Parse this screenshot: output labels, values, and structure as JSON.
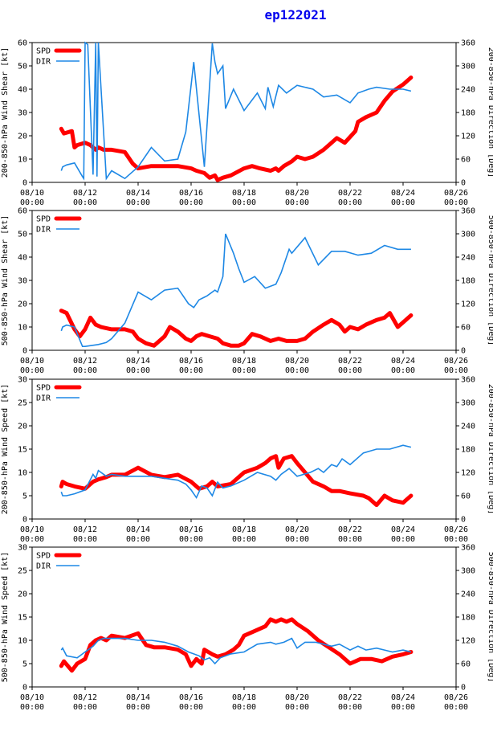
{
  "title": "ep122021",
  "colors": {
    "spd": "#ff0000",
    "dir": "#1e88e5",
    "title": "#0000ee"
  },
  "x_tick_labels": [
    "08/10",
    "08/12",
    "08/14",
    "08/16",
    "08/18",
    "08/20",
    "08/22",
    "08/24",
    "08/26"
  ],
  "x_tick_sublabel": "00:00",
  "chart_data": [
    {
      "type": "line",
      "xlim": [
        10,
        26
      ],
      "left_ylabel": "200-850-hPa Wind Shear [kt]",
      "right_ylabel": "200-850-hPa Direction [Deg]",
      "left_ylim": [
        0,
        60
      ],
      "right_ylim": [
        0,
        360
      ],
      "left_ticks": [
        0,
        10,
        20,
        30,
        40,
        50,
        60
      ],
      "right_ticks": [
        0,
        60,
        120,
        180,
        240,
        300,
        360
      ],
      "legend": [
        "SPD",
        "DIR"
      ],
      "series": [
        {
          "name": "SPD",
          "axis": "left",
          "x": [
            11.1,
            11.2,
            11.5,
            11.6,
            11.7,
            12.0,
            12.2,
            12.4,
            12.5,
            12.7,
            13.0,
            13.5,
            13.8,
            14.0,
            14.5,
            15.0,
            15.5,
            16.0,
            16.2,
            16.5,
            16.7,
            16.9,
            17.0,
            17.2,
            17.5,
            18.0,
            18.3,
            18.6,
            19.0,
            19.2,
            19.3,
            19.5,
            19.8,
            20.0,
            20.3,
            20.6,
            21.0,
            21.2,
            21.5,
            21.8,
            22.2,
            22.3,
            22.6,
            23.0,
            23.3,
            23.6,
            24.0,
            24.3
          ],
          "values": [
            23,
            21,
            22,
            15,
            16,
            17,
            16,
            14,
            15,
            14,
            14,
            13,
            8,
            6,
            7,
            7,
            7,
            6,
            5,
            4,
            2,
            3,
            1,
            2,
            3,
            6,
            7,
            6,
            5,
            6,
            5,
            7,
            9,
            11,
            10,
            11,
            14,
            16,
            19,
            17,
            22,
            26,
            28,
            30,
            35,
            39,
            42,
            45
          ]
        },
        {
          "name": "DIR",
          "axis": "right",
          "x": [
            11.1,
            11.15,
            11.3,
            11.6,
            11.9,
            11.95,
            12.0,
            12.1,
            12.3,
            12.4,
            12.45,
            12.5,
            12.8,
            13.0,
            13.5,
            14.0,
            14.5,
            15.0,
            15.5,
            15.8,
            16.1,
            16.5,
            16.8,
            16.9,
            17.0,
            17.2,
            17.3,
            17.6,
            18.0,
            18.5,
            18.8,
            18.9,
            19.1,
            19.3,
            19.6,
            20.0,
            20.3,
            20.6,
            21.0,
            21.5,
            22.0,
            22.3,
            22.7,
            23.0,
            23.5,
            24.0,
            24.3
          ],
          "values": [
            30,
            40,
            45,
            50,
            15,
            10,
            360,
            355,
            20,
            360,
            15,
            360,
            10,
            30,
            10,
            40,
            90,
            55,
            60,
            130,
            310,
            40,
            358,
            310,
            280,
            300,
            190,
            240,
            185,
            230,
            190,
            245,
            195,
            250,
            230,
            250,
            245,
            240,
            220,
            225,
            205,
            230,
            240,
            245,
            240,
            240,
            235
          ]
        }
      ]
    },
    {
      "type": "line",
      "xlim": [
        10,
        26
      ],
      "left_ylabel": "500-850-hPa Wind Shear [kt]",
      "right_ylabel": "500-850-hPa Direction [Deg]",
      "left_ylim": [
        0,
        60
      ],
      "right_ylim": [
        0,
        360
      ],
      "left_ticks": [
        0,
        10,
        20,
        30,
        40,
        50,
        60
      ],
      "right_ticks": [
        0,
        60,
        120,
        180,
        240,
        300,
        360
      ],
      "legend": [
        "SPD",
        "DIR"
      ],
      "series": [
        {
          "name": "SPD",
          "axis": "left",
          "x": [
            11.1,
            11.3,
            11.6,
            11.8,
            12.0,
            12.2,
            12.4,
            12.6,
            13.0,
            13.5,
            13.8,
            14.0,
            14.3,
            14.6,
            15.0,
            15.2,
            15.5,
            15.8,
            16.0,
            16.2,
            16.4,
            16.7,
            17.0,
            17.2,
            17.5,
            17.8,
            18.0,
            18.3,
            18.6,
            19.0,
            19.3,
            19.6,
            20.0,
            20.3,
            20.6,
            21.0,
            21.3,
            21.6,
            21.8,
            22.0,
            22.3,
            22.6,
            23.0,
            23.3,
            23.5,
            23.8,
            24.0,
            24.3
          ],
          "values": [
            17,
            16,
            9,
            6,
            9,
            14,
            11,
            10,
            9,
            9,
            8,
            5,
            3,
            2,
            6,
            10,
            8,
            5,
            4,
            6,
            7,
            6,
            5,
            3,
            2,
            2,
            3,
            7,
            6,
            4,
            5,
            4,
            4,
            5,
            8,
            11,
            13,
            11,
            8,
            10,
            9,
            11,
            13,
            14,
            16,
            10,
            12,
            15
          ]
        },
        {
          "name": "DIR",
          "axis": "right",
          "x": [
            11.1,
            11.15,
            11.3,
            11.6,
            11.9,
            12.0,
            12.5,
            12.8,
            13.0,
            13.5,
            14.0,
            14.5,
            15.0,
            15.5,
            15.9,
            16.1,
            16.3,
            16.6,
            16.9,
            17.0,
            17.2,
            17.3,
            17.6,
            17.8,
            18.0,
            18.4,
            18.8,
            19.2,
            19.4,
            19.7,
            19.8,
            20.3,
            20.8,
            21.3,
            21.8,
            22.3,
            22.8,
            23.3,
            23.8,
            24.3
          ],
          "values": [
            50,
            60,
            65,
            60,
            10,
            10,
            15,
            20,
            30,
            70,
            150,
            130,
            155,
            160,
            120,
            110,
            130,
            140,
            155,
            150,
            190,
            300,
            250,
            210,
            175,
            190,
            160,
            170,
            200,
            260,
            250,
            290,
            220,
            255,
            255,
            245,
            250,
            270,
            260,
            260
          ]
        }
      ]
    },
    {
      "type": "line",
      "xlim": [
        10,
        26
      ],
      "left_ylabel": "200-850-hPa Wind Speed [kt]",
      "right_ylabel": "200-850-hPa Direction [Deg]",
      "left_ylim": [
        0,
        30
      ],
      "right_ylim": [
        0,
        360
      ],
      "left_ticks": [
        0,
        5,
        10,
        15,
        20,
        25,
        30
      ],
      "right_ticks": [
        0,
        60,
        120,
        180,
        240,
        300,
        360
      ],
      "legend": [
        "SPD",
        "DIR"
      ],
      "series": [
        {
          "name": "SPD",
          "axis": "left",
          "x": [
            11.1,
            11.15,
            11.3,
            11.6,
            12.0,
            12.3,
            12.5,
            12.8,
            13.0,
            13.5,
            14.0,
            14.5,
            15.0,
            15.5,
            16.0,
            16.3,
            16.6,
            16.8,
            17.0,
            17.5,
            18.0,
            18.5,
            18.8,
            19.0,
            19.2,
            19.3,
            19.5,
            19.8,
            20.0,
            20.3,
            20.6,
            21.0,
            21.3,
            21.6,
            22.0,
            22.5,
            22.7,
            23.0,
            23.3,
            23.6,
            24.0,
            24.3
          ],
          "values": [
            7,
            8,
            7.5,
            7,
            6.5,
            8,
            8.5,
            9,
            9.5,
            9.5,
            11,
            9.5,
            9,
            9.5,
            8,
            6.5,
            7,
            8,
            7,
            7.5,
            10,
            11,
            12,
            13,
            13.5,
            11,
            13,
            13.5,
            12,
            10,
            8,
            7,
            6,
            6,
            5.5,
            5,
            4.5,
            3,
            5,
            4,
            3.5,
            5
          ]
        },
        {
          "name": "DIR",
          "axis": "right",
          "x": [
            11.1,
            11.15,
            11.3,
            11.6,
            12.0,
            12.3,
            12.4,
            12.5,
            12.8,
            13.0,
            13.5,
            14.0,
            14.5,
            15.0,
            15.5,
            15.8,
            16.0,
            16.2,
            16.4,
            16.6,
            16.8,
            17.0,
            17.2,
            17.5,
            18.0,
            18.5,
            19.0,
            19.2,
            19.4,
            19.7,
            20.0,
            20.5,
            20.8,
            21.0,
            21.3,
            21.5,
            21.7,
            22.0,
            22.5,
            23.0,
            23.5,
            24.0,
            24.3
          ],
          "values": [
            70,
            60,
            60,
            65,
            75,
            115,
            105,
            125,
            110,
            115,
            110,
            110,
            110,
            105,
            100,
            90,
            75,
            55,
            85,
            80,
            60,
            95,
            80,
            85,
            100,
            120,
            110,
            100,
            115,
            130,
            110,
            120,
            130,
            120,
            140,
            135,
            155,
            140,
            170,
            180,
            180,
            190,
            185
          ]
        }
      ]
    },
    {
      "type": "line",
      "xlim": [
        10,
        26
      ],
      "left_ylabel": "500-850-hPa Wind Speed [kt]",
      "right_ylabel": "500-850-hPa Direction [Deg]",
      "left_ylim": [
        0,
        30
      ],
      "right_ylim": [
        0,
        360
      ],
      "left_ticks": [
        0,
        5,
        10,
        15,
        20,
        25,
        30
      ],
      "right_ticks": [
        0,
        60,
        120,
        180,
        240,
        300,
        360
      ],
      "legend": [
        "SPD",
        "DIR"
      ],
      "series": [
        {
          "name": "SPD",
          "axis": "left",
          "x": [
            11.1,
            11.2,
            11.5,
            11.7,
            12.0,
            12.2,
            12.4,
            12.6,
            12.8,
            13.0,
            13.5,
            14.0,
            14.3,
            14.6,
            15.0,
            15.5,
            15.8,
            16.0,
            16.2,
            16.4,
            16.5,
            16.8,
            17.0,
            17.3,
            17.6,
            17.8,
            18.0,
            18.4,
            18.8,
            19.0,
            19.2,
            19.4,
            19.6,
            19.8,
            20.0,
            20.4,
            20.8,
            21.2,
            21.6,
            22.0,
            22.4,
            22.8,
            23.2,
            23.6,
            24.0,
            24.3
          ],
          "values": [
            4.5,
            5.5,
            3.5,
            5,
            6,
            9,
            10,
            10.5,
            10,
            11,
            10.5,
            11.5,
            9,
            8.5,
            8.5,
            8,
            7,
            4.5,
            6,
            5,
            8,
            7,
            6.5,
            7,
            8,
            9,
            11,
            12,
            13,
            14.5,
            14,
            14.5,
            14,
            14.5,
            13.5,
            12,
            10,
            8.5,
            7,
            5,
            6,
            6,
            5.5,
            6.5,
            7,
            7.5
          ]
        },
        {
          "name": "DIR",
          "axis": "right",
          "x": [
            11.1,
            11.15,
            11.3,
            11.7,
            12.0,
            12.3,
            12.5,
            12.7,
            13.0,
            13.5,
            14.0,
            14.5,
            15.0,
            15.5,
            15.9,
            16.1,
            16.3,
            16.5,
            16.7,
            16.9,
            17.1,
            17.5,
            18.0,
            18.5,
            19.0,
            19.2,
            19.5,
            19.8,
            20.0,
            20.3,
            20.7,
            21.0,
            21.3,
            21.6,
            22.0,
            22.3,
            22.6,
            23.0,
            23.3,
            23.6,
            24.0,
            24.3
          ],
          "values": [
            95,
            100,
            80,
            75,
            90,
            105,
            120,
            125,
            125,
            125,
            120,
            120,
            115,
            105,
            90,
            85,
            80,
            70,
            75,
            60,
            75,
            85,
            90,
            110,
            115,
            110,
            115,
            125,
            100,
            115,
            115,
            110,
            105,
            110,
            95,
            105,
            95,
            100,
            95,
            90,
            95,
            90
          ]
        }
      ]
    }
  ]
}
